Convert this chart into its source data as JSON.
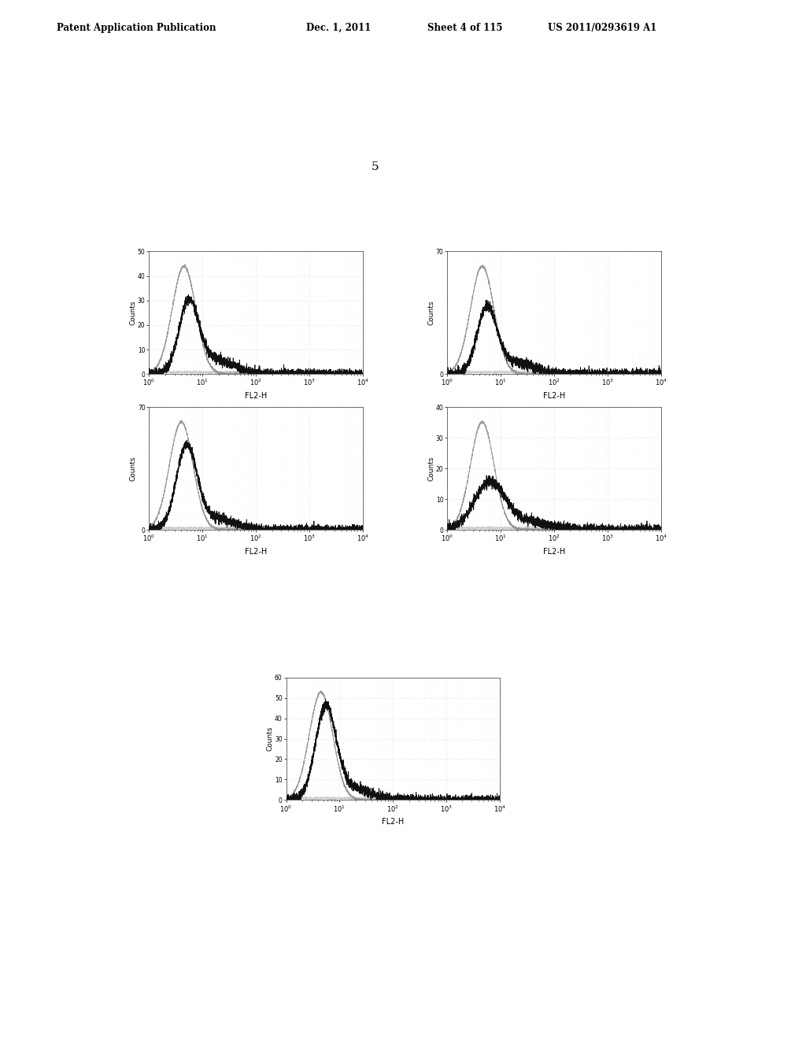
{
  "header_left": "Patent Application Publication",
  "header_date": "Dec. 1, 2011",
  "header_sheet": "Sheet 4 of 115",
  "header_right": "US 2011/0293619 A1",
  "figure_number": "5",
  "plots": [
    {
      "row": 0,
      "col": 0,
      "ylim": [
        0,
        50
      ],
      "yticks": [
        0,
        10,
        20,
        30,
        40,
        50
      ]
    },
    {
      "row": 0,
      "col": 1,
      "ylim": [
        0,
        70
      ],
      "yticks": [
        0,
        70
      ]
    },
    {
      "row": 1,
      "col": 0,
      "ylim": [
        0,
        70
      ],
      "yticks": [
        0,
        70
      ]
    },
    {
      "row": 1,
      "col": 1,
      "ylim": [
        0,
        40
      ],
      "yticks": [
        0,
        10,
        20,
        30,
        40
      ]
    },
    {
      "row": 2,
      "col": 0,
      "ylim": [
        0,
        60
      ],
      "yticks": [
        0,
        10,
        20,
        30,
        40,
        50,
        60
      ]
    }
  ],
  "xlabel": "FL2-H",
  "background_color": "#ffffff",
  "plot_bg_color": "#ffffff",
  "grid_color": "#cccccc",
  "line_color_gray": "#999999",
  "line_color_black": "#111111",
  "line_color_light": "#cccccc",
  "header_fontsize": 8.5,
  "fig_num_fontsize": 11
}
